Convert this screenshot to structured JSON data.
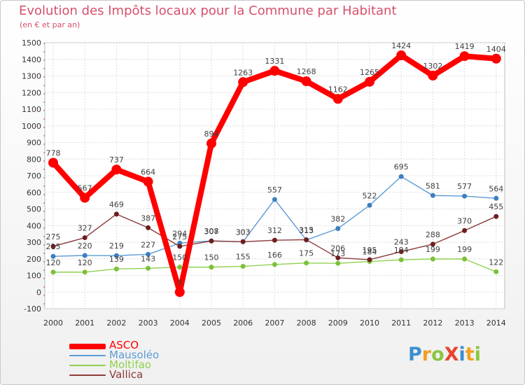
{
  "title": "Evolution des Impôts locaux pour la Commune par Habitant",
  "subtitle": "(en € et par an)",
  "logo": {
    "text": "ProXiti",
    "letter_colors": [
      "#3a8fd0",
      "#f0a020",
      "#8cc63f",
      "#e8442e",
      "#3a8fd0",
      "#f0a020",
      "#8cc63f"
    ]
  },
  "chart_data": {
    "type": "line",
    "x": [
      "2000",
      "2001",
      "2002",
      "2003",
      "2004",
      "2005",
      "2006",
      "2007",
      "2008",
      "2009",
      "2010",
      "2011",
      "2012",
      "2013",
      "2014"
    ],
    "ylim": [
      -100,
      1500
    ],
    "yticks": [
      "-100",
      "0",
      "100",
      "200",
      "300",
      "400",
      "500",
      "600",
      "700",
      "800",
      "900",
      "1000",
      "1100",
      "1200",
      "1300",
      "1400",
      "1500"
    ],
    "grid": true,
    "legend_position": "bottom-left",
    "series": [
      {
        "name": "Mausoléo",
        "color": "#5b9bd5",
        "marker_color": "#3d7fc0",
        "values": [
          215,
          220,
          219,
          227,
          294,
          308,
          303,
          557,
          313,
          382,
          522,
          695,
          581,
          577,
          564
        ],
        "labels": [
          "215",
          "220",
          "219",
          "227",
          "294",
          "308",
          "303",
          "557",
          "313",
          "382",
          "522",
          "695",
          "581",
          "577",
          "564"
        ]
      },
      {
        "name": "Moltifao",
        "color": "#8fd14f",
        "marker_color": "#7cc03a",
        "values": [
          120,
          120,
          139,
          143,
          150,
          150,
          155,
          166,
          175,
          173,
          184,
          194,
          199,
          199,
          122
        ],
        "labels": [
          "120",
          "120",
          "139",
          "143",
          "150",
          "150",
          "155",
          "166",
          "175",
          "173",
          "184",
          "194",
          "199",
          "199",
          "122"
        ]
      },
      {
        "name": "Vallica",
        "color": "#8b3a3a",
        "marker_color": "#6e1e1e",
        "values": [
          275,
          327,
          469,
          387,
          275,
          307,
          303,
          312,
          315,
          206,
          195,
          243,
          288,
          370,
          455
        ],
        "labels": [
          "275",
          "327",
          "469",
          "387",
          "275",
          "307",
          "303",
          "312",
          "315",
          "206",
          "195",
          "243",
          "288",
          "370",
          "455"
        ]
      },
      {
        "name": "ASCO",
        "color": "#ff0000",
        "marker_color": "#ff0000",
        "values": [
          778,
          567,
          737,
          664,
          0,
          894,
          1263,
          1331,
          1268,
          1162,
          1265,
          1424,
          1302,
          1419,
          1404
        ],
        "labels": [
          "778",
          "567",
          "737",
          "664",
          "0",
          "894",
          "1263",
          "1331",
          "1268",
          "1162",
          "1265",
          "1424",
          "1302",
          "1419",
          "1404"
        ]
      }
    ],
    "legend": [
      "ASCO",
      "Mausoléo",
      "Moltifao",
      "Vallica"
    ]
  }
}
